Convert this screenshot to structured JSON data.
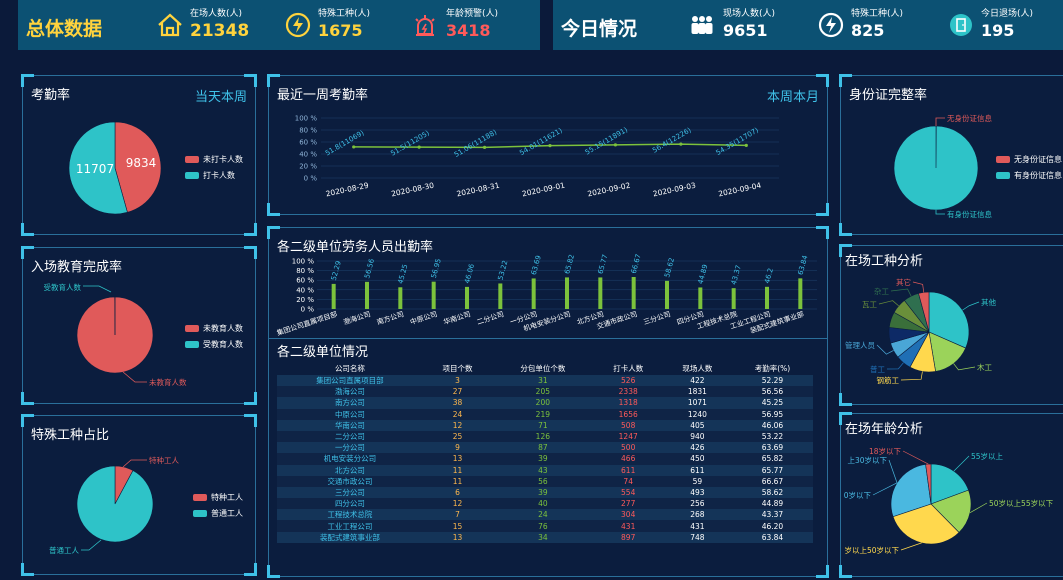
{
  "header": {
    "left_title": "总体数据",
    "right_title": "今日情况",
    "left_stats": [
      {
        "label": "在场人数(人)",
        "value": "21348",
        "color": "#ffd33d",
        "icon": "home-icon"
      },
      {
        "label": "特殊工种(人)",
        "value": "1675",
        "color": "#ffd33d",
        "icon": "bolt-circle-icon"
      },
      {
        "label": "年龄预警(人)",
        "value": "3418",
        "color": "#ff5a5a",
        "icon": "alarm-icon"
      }
    ],
    "right_stats": [
      {
        "label": "现场人数(人)",
        "value": "9651",
        "color": "#3fc1e8",
        "icon": "people-icon"
      },
      {
        "label": "特殊工种(人)",
        "value": "825",
        "color": "#3fc1e8",
        "icon": "bolt-circle-icon"
      },
      {
        "label": "今日退场(人)",
        "value": "195",
        "color": "#3fc1e8",
        "icon": "exit-icon"
      }
    ]
  },
  "colors": {
    "red": "#e05a5a",
    "teal": "#2ec3c8",
    "green": "#7cc23c"
  },
  "attendance": {
    "title": "考勤率",
    "toggle": "当天本周",
    "chart_data": {
      "type": "pie",
      "labels": [
        "未打卡人数",
        "打卡人数"
      ],
      "values": [
        9834,
        11707
      ],
      "colors": [
        "#e05a5a",
        "#2ec3c8"
      ],
      "value_labels": [
        "9834",
        "11707"
      ]
    }
  },
  "education": {
    "title": "入场教育完成率",
    "chart_data": {
      "type": "pie",
      "labels": [
        "未教育人数",
        "受教育人数"
      ],
      "values": [
        999,
        1
      ],
      "colors": [
        "#e05a5a",
        "#2ec3c8"
      ],
      "callouts": [
        "受教育人数",
        "未教育人数"
      ]
    }
  },
  "special_ratio": {
    "title": "特殊工种占比",
    "chart_data": {
      "type": "pie",
      "labels": [
        "特种工人",
        "普通工人"
      ],
      "values": [
        1675,
        19673
      ],
      "colors": [
        "#e05a5a",
        "#2ec3c8"
      ],
      "callouts": [
        "特种工人",
        "普通工人"
      ]
    }
  },
  "weekly": {
    "title": "最近一周考勤率",
    "toggle": "本周本月",
    "chart_data": {
      "type": "line",
      "x": [
        "2020-08-29",
        "2020-08-30",
        "2020-08-31",
        "2020-09-01",
        "2020-09-02",
        "2020-09-03",
        "2020-09-04"
      ],
      "values": [
        51.8,
        51.5,
        51.06,
        54.01,
        55.15,
        56.4,
        54.35
      ],
      "point_labels": [
        "51.8(11069)",
        "51.5(11205)",
        "51.06(11188)",
        "54.01(11621)",
        "55.15(11891)",
        "56.4(12226)",
        "54.35(11707)"
      ],
      "yticks": [
        "0 %",
        "20 %",
        "40 %",
        "60 %",
        "80 %",
        "100 %"
      ],
      "ylim": [
        0,
        100
      ]
    }
  },
  "units_attendance": {
    "title": "各二级单位劳务人员出勤率",
    "chart_data": {
      "type": "bar",
      "categories": [
        "集团公司直属项目部",
        "渤海公司",
        "南方公司",
        "中原公司",
        "华南公司",
        "二分公司",
        "一分公司",
        "机电安装分公司",
        "北方公司",
        "交通市政公司",
        "三分公司",
        "四分公司",
        "工程技术总院",
        "工业工程公司",
        "装配式建筑事业部"
      ],
      "values": [
        52.29,
        56.56,
        45.25,
        56.95,
        46.06,
        53.22,
        63.69,
        65.82,
        65.77,
        66.67,
        58.62,
        44.89,
        43.37,
        46.2,
        63.84
      ],
      "value_labels": [
        "52.29",
        "56.56",
        "45.25",
        "56.95",
        "46.06",
        "53.22",
        "63.69",
        "65.82",
        "65.77",
        "66.67",
        "58.62",
        "44.89",
        "43.37",
        "46.2",
        "63.84"
      ],
      "yticks": [
        "0 %",
        "20 %",
        "40 %",
        "60 %",
        "80 %",
        "100 %"
      ],
      "ylim": [
        0,
        100
      ]
    }
  },
  "units_table": {
    "title": "各二级单位情况",
    "headers": [
      "公司名称",
      "项目个数",
      "分包单位个数",
      "打卡人数",
      "现场人数",
      "考勤率(%)"
    ],
    "rows": [
      [
        "集团公司直属项目部",
        "3",
        "31",
        "526",
        "422",
        "52.29"
      ],
      [
        "渤海公司",
        "27",
        "205",
        "2338",
        "1831",
        "56.56"
      ],
      [
        "南方公司",
        "38",
        "200",
        "1318",
        "1071",
        "45.25"
      ],
      [
        "中原公司",
        "24",
        "219",
        "1656",
        "1240",
        "56.95"
      ],
      [
        "华南公司",
        "12",
        "71",
        "508",
        "405",
        "46.06"
      ],
      [
        "二分公司",
        "25",
        "126",
        "1247",
        "940",
        "53.22"
      ],
      [
        "一分公司",
        "9",
        "87",
        "500",
        "426",
        "63.69"
      ],
      [
        "机电安装分公司",
        "13",
        "39",
        "466",
        "450",
        "65.82"
      ],
      [
        "北方公司",
        "11",
        "43",
        "611",
        "611",
        "65.77"
      ],
      [
        "交通市政公司",
        "11",
        "56",
        "74",
        "59",
        "66.67"
      ],
      [
        "三分公司",
        "6",
        "39",
        "554",
        "493",
        "58.62"
      ],
      [
        "四分公司",
        "12",
        "40",
        "277",
        "256",
        "44.89"
      ],
      [
        "工程技术总院",
        "7",
        "24",
        "304",
        "268",
        "43.37"
      ],
      [
        "工业工程公司",
        "15",
        "76",
        "431",
        "431",
        "46.20"
      ],
      [
        "装配式建筑事业部",
        "13",
        "34",
        "897",
        "748",
        "63.84"
      ]
    ]
  },
  "id_complete": {
    "title": "身份证完整率",
    "chart_data": {
      "type": "pie",
      "labels": [
        "无身份证信息",
        "有身份证信息"
      ],
      "values": [
        1,
        999
      ],
      "colors": [
        "#e05a5a",
        "#2ec3c8"
      ],
      "callouts": [
        "无身份证信息",
        "有身份证信息"
      ]
    }
  },
  "work_types": {
    "title": "在场工种分析",
    "chart_data": {
      "type": "pie",
      "labels": [
        "其他",
        "木工",
        "钢筋工",
        "普工",
        "管理人员",
        "",
        "",
        "瓦工",
        "杂工",
        "其它"
      ],
      "values": [
        30,
        15,
        10,
        6,
        6,
        6,
        6,
        6,
        6,
        4
      ],
      "colors": [
        "#2ec3c8",
        "#9bd35a",
        "#ffd84d",
        "#1f6fb5",
        "#4aa6d6",
        "#0d2a66",
        "#3a6f3a",
        "#6a8f3a",
        "#2f6f4f",
        "#e05a5a"
      ],
      "callouts": [
        "其他",
        "木工",
        "钢筋工",
        "普工",
        "管理人员",
        "瓦工",
        "杂工",
        "其它"
      ]
    }
  },
  "age": {
    "title": "在场年龄分析",
    "chart_data": {
      "type": "pie",
      "labels": [
        "55岁以上",
        "50岁以上55岁以下",
        "30岁以上50岁以下",
        "30岁以下",
        "18岁以下"
      ],
      "values": [
        18,
        17,
        30,
        26,
        2
      ],
      "colors": [
        "#2ec3c8",
        "#9bd35a",
        "#ffd84d",
        "#4ab8e0",
        "#e05a5a"
      ],
      "callouts": [
        "55岁以上",
        "50岁以上55岁以下",
        "岁以上50岁以下",
        "0岁以下",
        "18岁以下",
        "上30岁以下"
      ]
    }
  }
}
